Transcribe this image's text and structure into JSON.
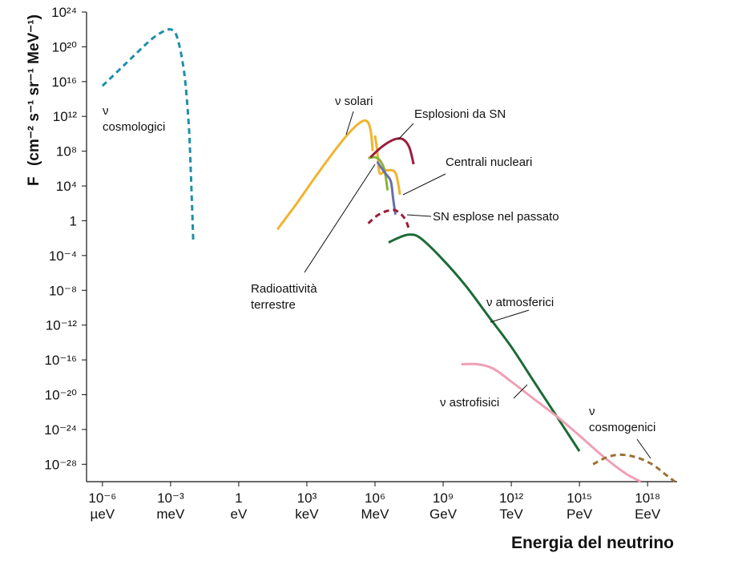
{
  "chart_data": {
    "type": "line",
    "title": "",
    "xlabel": "Energia del neutrino",
    "ylabel": "F",
    "ylabel_units": "(cm⁻² s⁻¹ sr⁻¹ MeV⁻¹)",
    "x_scale": "log10",
    "y_scale": "log10",
    "xlim_log10_eV": [
      -6.7,
      19.3
    ],
    "ylim_log10": [
      -30,
      24
    ],
    "x_ticks": [
      {
        "log10_eV": -6,
        "label": "10⁻⁶",
        "unit": "µeV"
      },
      {
        "log10_eV": -3,
        "label": "10⁻³",
        "unit": "meV"
      },
      {
        "log10_eV": 0,
        "label": "1",
        "unit": "eV"
      },
      {
        "log10_eV": 3,
        "label": "10³",
        "unit": "keV"
      },
      {
        "log10_eV": 6,
        "label": "10⁶",
        "unit": "MeV"
      },
      {
        "log10_eV": 9,
        "label": "10⁹",
        "unit": "GeV"
      },
      {
        "log10_eV": 12,
        "label": "10¹²",
        "unit": "TeV"
      },
      {
        "log10_eV": 15,
        "label": "10¹⁵",
        "unit": "PeV"
      },
      {
        "log10_eV": 18,
        "label": "10¹⁸",
        "unit": "EeV"
      }
    ],
    "y_ticks": [
      {
        "log10": 24,
        "label": "10²⁴"
      },
      {
        "log10": 20,
        "label": "10²⁰"
      },
      {
        "log10": 16,
        "label": "10¹⁶"
      },
      {
        "log10": 12,
        "label": "10¹²"
      },
      {
        "log10": 8,
        "label": "10⁸"
      },
      {
        "log10": 4,
        "label": "10⁴"
      },
      {
        "log10": 0,
        "label": "1"
      },
      {
        "log10": -4,
        "label": "10⁻⁴"
      },
      {
        "log10": -8,
        "label": "10⁻⁸"
      },
      {
        "log10": -12,
        "label": "10⁻¹²"
      },
      {
        "log10": -16,
        "label": "10⁻¹⁶"
      },
      {
        "log10": -20,
        "label": "10⁻²⁰"
      },
      {
        "log10": -24,
        "label": "10⁻²⁴"
      },
      {
        "log10": -28,
        "label": "10⁻²⁸"
      }
    ],
    "grid": false,
    "legend": "none",
    "series": [
      {
        "name": "ν cosmologici",
        "color": "#1f8fa8",
        "style": "dashed",
        "points": [
          [
            -6,
            15.5
          ],
          [
            -5,
            18
          ],
          [
            -4,
            20.5
          ],
          [
            -3.5,
            21.5
          ],
          [
            -3,
            22
          ],
          [
            -2.7,
            21
          ],
          [
            -2.4,
            17
          ],
          [
            -2.2,
            11
          ],
          [
            -2.1,
            5
          ],
          [
            -2,
            -2.5
          ]
        ]
      },
      {
        "name": "ν solari",
        "color": "#f0b430",
        "style": "solid",
        "points": [
          [
            1.7,
            -1
          ],
          [
            2.5,
            1.8
          ],
          [
            3.5,
            5.5
          ],
          [
            4.5,
            9
          ],
          [
            5.2,
            11
          ],
          [
            5.6,
            11.5
          ],
          [
            5.8,
            10.5
          ],
          [
            5.9,
            8
          ]
        ]
      },
      {
        "name": "ν solari",
        "color": "#f0b430",
        "style": "solid",
        "points": [
          [
            6.0,
            9.8
          ],
          [
            6.1,
            8
          ],
          [
            6.2,
            5.5
          ],
          [
            6.5,
            5.8
          ],
          [
            6.9,
            5.5
          ],
          [
            7.1,
            3
          ]
        ]
      },
      {
        "name": "Radioattività terrestre",
        "color": "#8ab43a",
        "style": "solid",
        "points": [
          [
            5.7,
            7.2
          ],
          [
            6.0,
            7.3
          ],
          [
            6.2,
            7.0
          ],
          [
            6.4,
            6.0
          ],
          [
            6.5,
            4.5
          ],
          [
            6.55,
            3.5
          ]
        ]
      },
      {
        "name": "Centrali nucleari",
        "color": "#6a6faa",
        "style": "solid",
        "points": [
          [
            6.1,
            6.8
          ],
          [
            6.3,
            6.0
          ],
          [
            6.5,
            5.3
          ],
          [
            6.7,
            4.5
          ],
          [
            6.8,
            2.5
          ],
          [
            6.9,
            0.7
          ]
        ]
      },
      {
        "name": "Esplosioni da SN",
        "color": "#9b1d3c",
        "style": "solid",
        "points": [
          [
            5.8,
            7.3
          ],
          [
            6.3,
            8.5
          ],
          [
            6.8,
            9.3
          ],
          [
            7.2,
            9.4
          ],
          [
            7.5,
            8.5
          ],
          [
            7.7,
            6.5
          ]
        ]
      },
      {
        "name": "SN esplose nel passato",
        "color": "#9b1d3c",
        "style": "dashed",
        "points": [
          [
            5.7,
            -0.3
          ],
          [
            6.1,
            0.6
          ],
          [
            6.5,
            1.1
          ],
          [
            6.9,
            1.2
          ],
          [
            7.3,
            0.3
          ],
          [
            7.5,
            -1.0
          ]
        ]
      },
      {
        "name": "ν atmosferici",
        "color": "#1c6b36",
        "style": "solid",
        "points": [
          [
            6.6,
            -2.5
          ],
          [
            7.0,
            -2.0
          ],
          [
            7.5,
            -1.6
          ],
          [
            8.0,
            -2.0
          ],
          [
            9.0,
            -4.5
          ],
          [
            10.0,
            -7.5
          ],
          [
            11.0,
            -11.0
          ],
          [
            12.0,
            -14.5
          ],
          [
            13.0,
            -18.5
          ],
          [
            14.0,
            -22.5
          ],
          [
            15.0,
            -26.5
          ]
        ]
      },
      {
        "name": "ν astrofisici",
        "color": "#efa0b4",
        "style": "solid",
        "points": [
          [
            9.8,
            -16.5
          ],
          [
            10.5,
            -16.5
          ],
          [
            11.2,
            -17.0
          ],
          [
            12.0,
            -18.5
          ],
          [
            13.0,
            -20.5
          ],
          [
            14.0,
            -22.5
          ],
          [
            15.0,
            -24.7
          ],
          [
            16.0,
            -27.0
          ],
          [
            17.0,
            -29.0
          ],
          [
            17.7,
            -30.0
          ]
        ]
      },
      {
        "name": "ν cosmogenici",
        "color": "#9a7136",
        "style": "dashed",
        "points": [
          [
            15.6,
            -28.0
          ],
          [
            16.2,
            -27.2
          ],
          [
            16.8,
            -26.9
          ],
          [
            17.5,
            -27.2
          ],
          [
            18.2,
            -28.0
          ],
          [
            18.8,
            -29.2
          ],
          [
            19.2,
            -30.0
          ]
        ]
      }
    ],
    "annotations": [
      {
        "lines": [
          "ν",
          "cosmologici"
        ]
      },
      {
        "lines": [
          "ν solari"
        ]
      },
      {
        "lines": [
          "Esplosioni da SN"
        ]
      },
      {
        "lines": [
          "Centrali nucleari"
        ]
      },
      {
        "lines": [
          "SN esplose nel passato"
        ]
      },
      {
        "lines": [
          "Radioattività",
          "terrestre"
        ]
      },
      {
        "lines": [
          "ν atmosferici"
        ]
      },
      {
        "lines": [
          "ν astrofisici"
        ]
      },
      {
        "lines": [
          "ν",
          "cosmogenici"
        ]
      }
    ]
  }
}
